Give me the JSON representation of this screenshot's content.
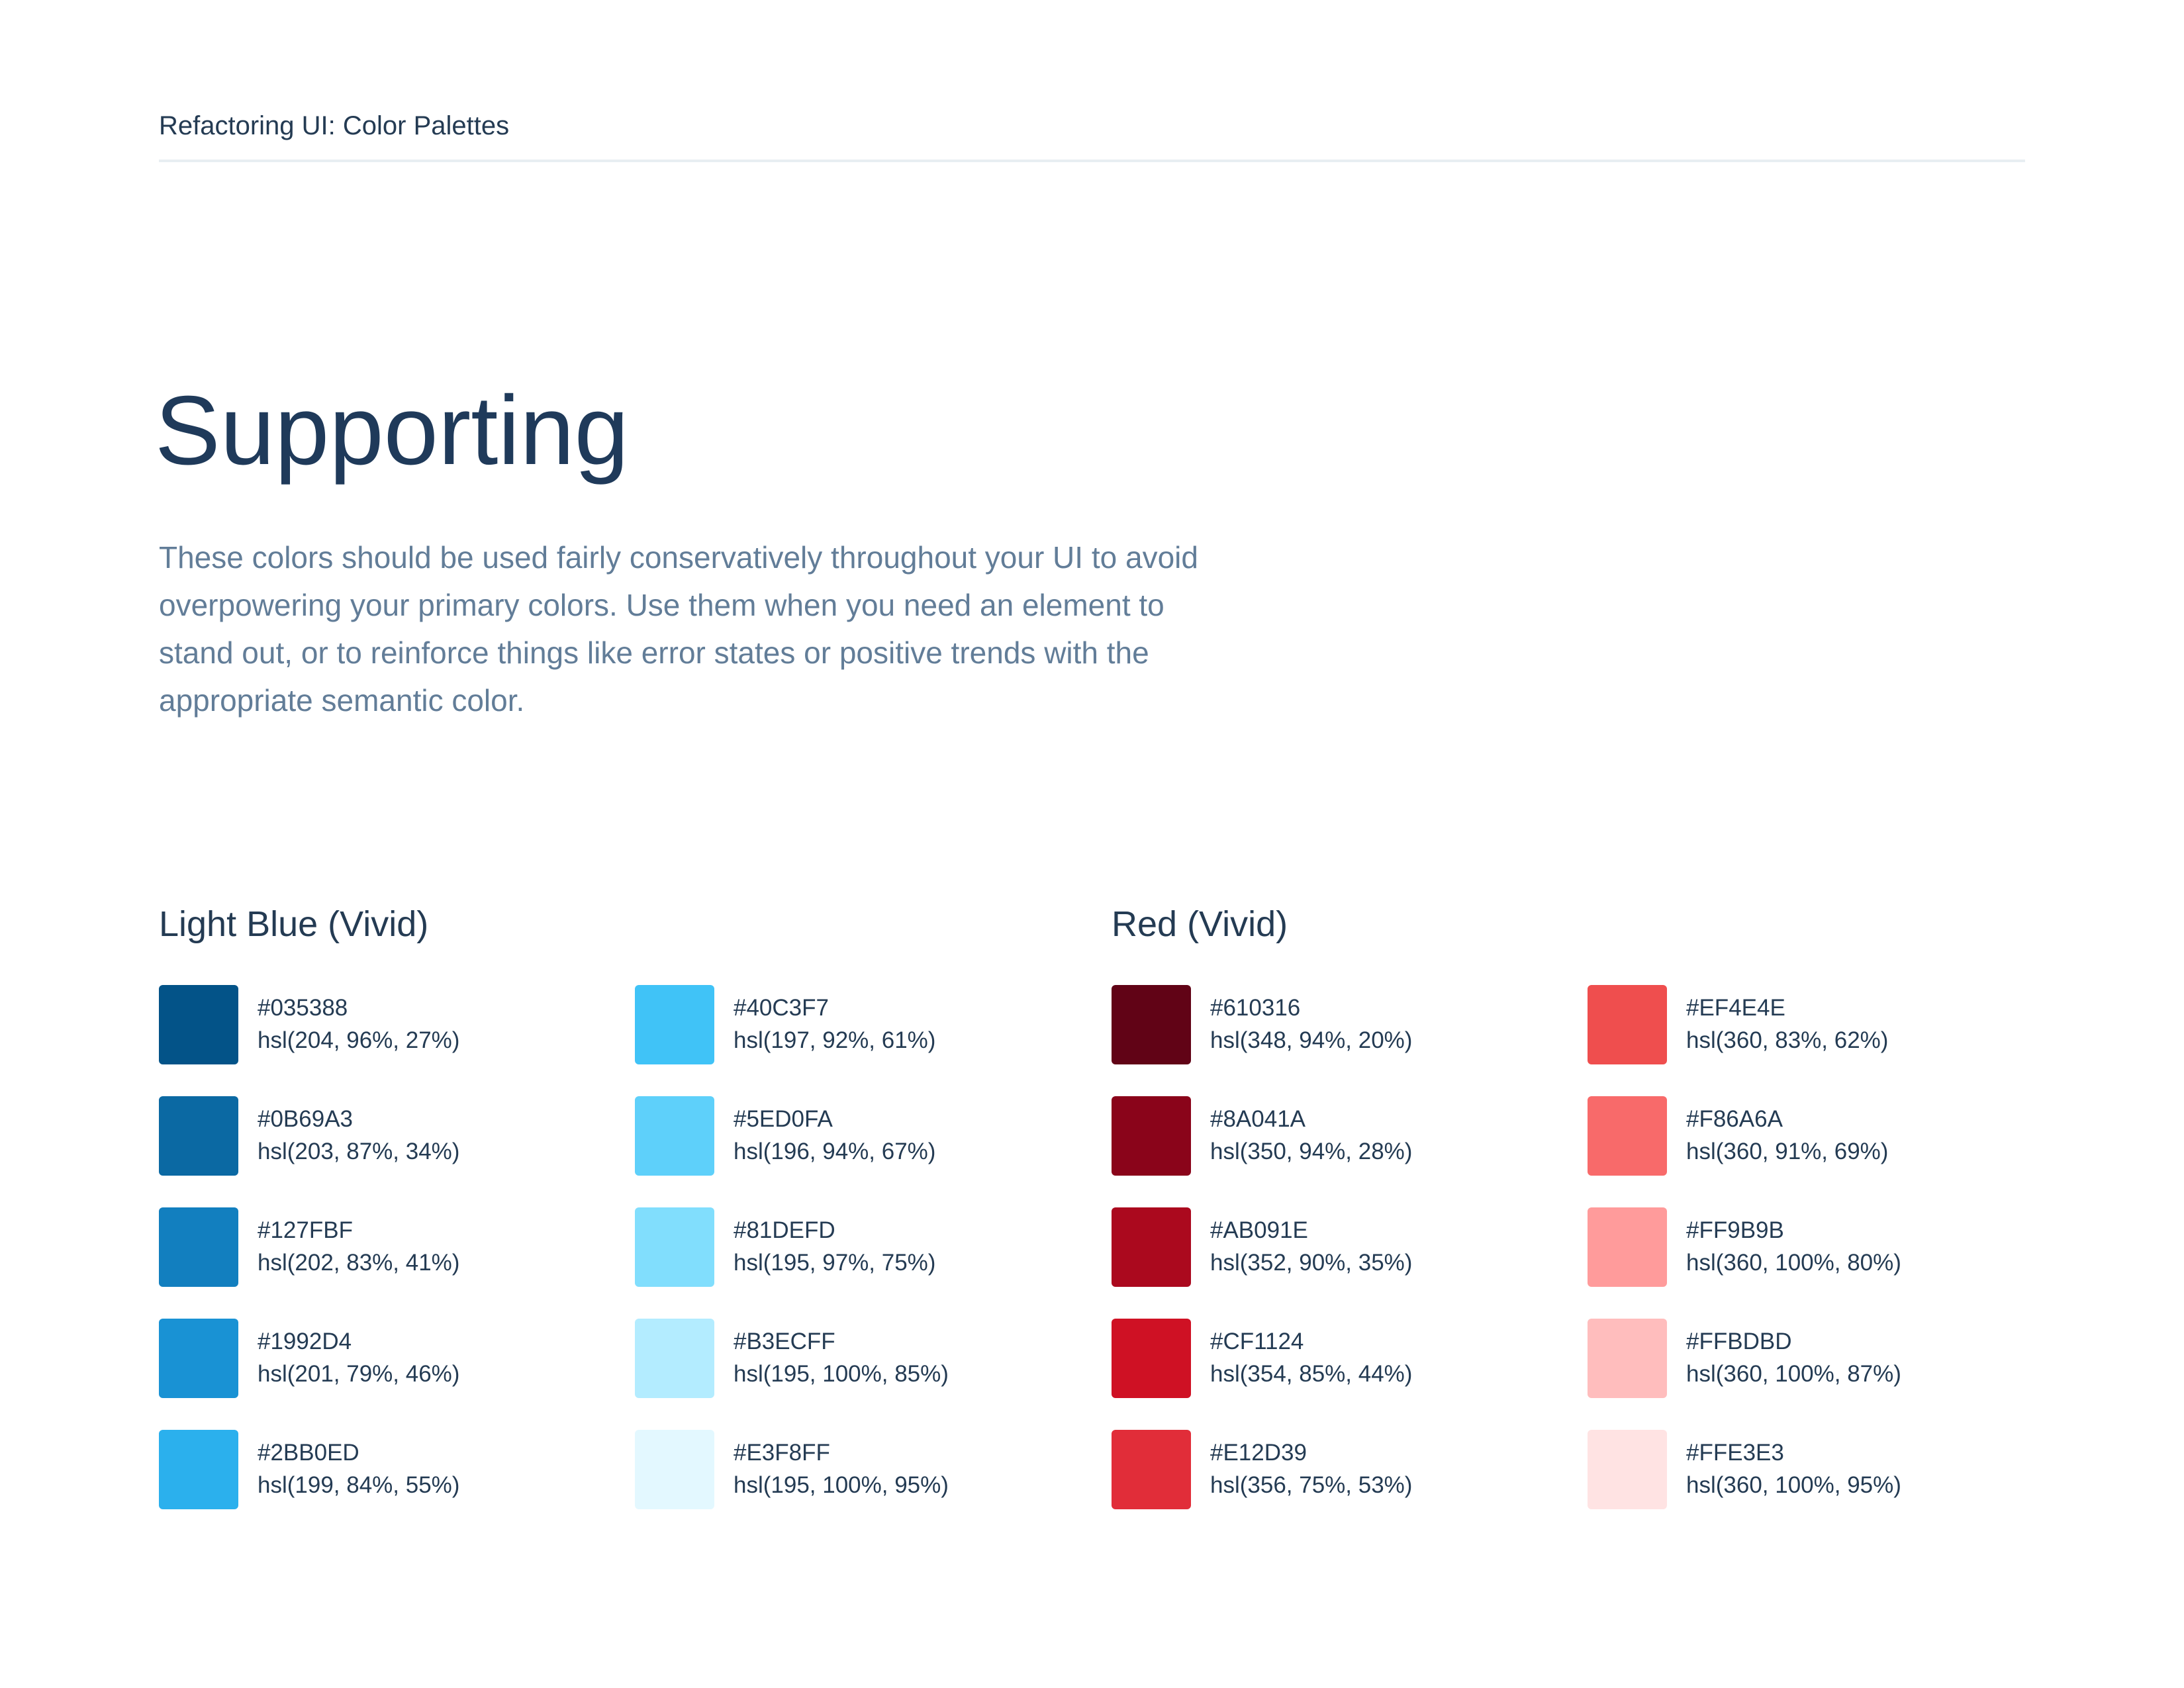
{
  "header": {
    "title": "Refactoring UI: Color Palettes"
  },
  "heading": "Supporting",
  "description": "These colors should be used fairly conservatively throughout your UI to avoid overpowering your primary colors. Use them when you need an element to stand out, or to reinforce things like error states or positive trends with the appropriate semantic color.",
  "palettes": [
    {
      "name": "Light Blue (Vivid)",
      "swatches": [
        {
          "hex": "#035388",
          "hsl": "hsl(204, 96%, 27%)"
        },
        {
          "hex": "#0B69A3",
          "hsl": "hsl(203, 87%, 34%)"
        },
        {
          "hex": "#127FBF",
          "hsl": "hsl(202, 83%, 41%)"
        },
        {
          "hex": "#1992D4",
          "hsl": "hsl(201, 79%, 46%)"
        },
        {
          "hex": "#2BB0ED",
          "hsl": "hsl(199, 84%, 55%)"
        },
        {
          "hex": "#40C3F7",
          "hsl": "hsl(197, 92%, 61%)"
        },
        {
          "hex": "#5ED0FA",
          "hsl": "hsl(196, 94%, 67%)"
        },
        {
          "hex": "#81DEFD",
          "hsl": "hsl(195, 97%, 75%)"
        },
        {
          "hex": "#B3ECFF",
          "hsl": "hsl(195, 100%, 85%)"
        },
        {
          "hex": "#E3F8FF",
          "hsl": "hsl(195, 100%, 95%)"
        }
      ]
    },
    {
      "name": "Red (Vivid)",
      "swatches": [
        {
          "hex": "#610316",
          "hsl": "hsl(348, 94%, 20%)"
        },
        {
          "hex": "#8A041A",
          "hsl": "hsl(350, 94%, 28%)"
        },
        {
          "hex": "#AB091E",
          "hsl": "hsl(352, 90%, 35%)"
        },
        {
          "hex": "#CF1124",
          "hsl": "hsl(354, 85%, 44%)"
        },
        {
          "hex": "#E12D39",
          "hsl": "hsl(356, 75%, 53%)"
        },
        {
          "hex": "#EF4E4E",
          "hsl": "hsl(360, 83%, 62%)"
        },
        {
          "hex": "#F86A6A",
          "hsl": "hsl(360, 91%, 69%)"
        },
        {
          "hex": "#FF9B9B",
          "hsl": "hsl(360, 100%, 80%)"
        },
        {
          "hex": "#FFBDBD",
          "hsl": "hsl(360, 100%, 87%)"
        },
        {
          "hex": "#FFE3E3",
          "hsl": "hsl(360, 100%, 95%)"
        }
      ]
    }
  ]
}
